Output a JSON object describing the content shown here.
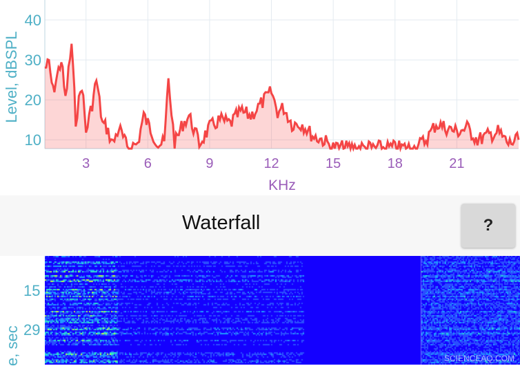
{
  "chart_data": {
    "type": "area",
    "xlabel": "KHz",
    "ylabel": "Level, dBSPL",
    "xlim": [
      1,
      24
    ],
    "ylim": [
      7.8,
      45
    ],
    "xticks": [
      3,
      6,
      9,
      12,
      15,
      18,
      21
    ],
    "yticks": [
      10,
      20,
      30,
      40
    ],
    "grid": true,
    "color": "#f44545",
    "x": [
      1.0,
      1.2,
      1.4,
      1.6,
      1.8,
      2.0,
      2.3,
      2.5,
      2.8,
      3.0,
      3.3,
      3.5,
      3.8,
      4.0,
      4.3,
      4.6,
      5.0,
      5.5,
      5.8,
      6.2,
      6.5,
      6.8,
      7.0,
      7.3,
      7.7,
      8.0,
      8.5,
      9.0,
      9.5,
      10,
      10.5,
      11,
      11.5,
      12,
      12.3,
      12.6,
      13,
      13.5,
      14,
      14.5,
      15,
      15.5,
      17,
      17.5,
      18,
      19,
      19.5,
      20,
      20.5,
      21,
      21.5,
      22,
      22.5,
      23,
      23.5,
      24
    ],
    "y": [
      28,
      29,
      22,
      26,
      30,
      20,
      34,
      15,
      24,
      12,
      19,
      25,
      14,
      13,
      9,
      13,
      8,
      9,
      16,
      12,
      9,
      9,
      25,
      9,
      14,
      16,
      9,
      13,
      15,
      14,
      17,
      16,
      19,
      22,
      17,
      18,
      14,
      14,
      11,
      10,
      8,
      8,
      8,
      8,
      8,
      8,
      10,
      14,
      13,
      12,
      13,
      10,
      11,
      12,
      9,
      10
    ]
  },
  "waterfall": {
    "title": "Waterfall",
    "help_label": "?",
    "ylabel": "Time, sec",
    "ylabel_visible": "e, sec",
    "yticks": [
      "15",
      "29"
    ]
  },
  "watermark": "SCIENCEAQ.COM"
}
